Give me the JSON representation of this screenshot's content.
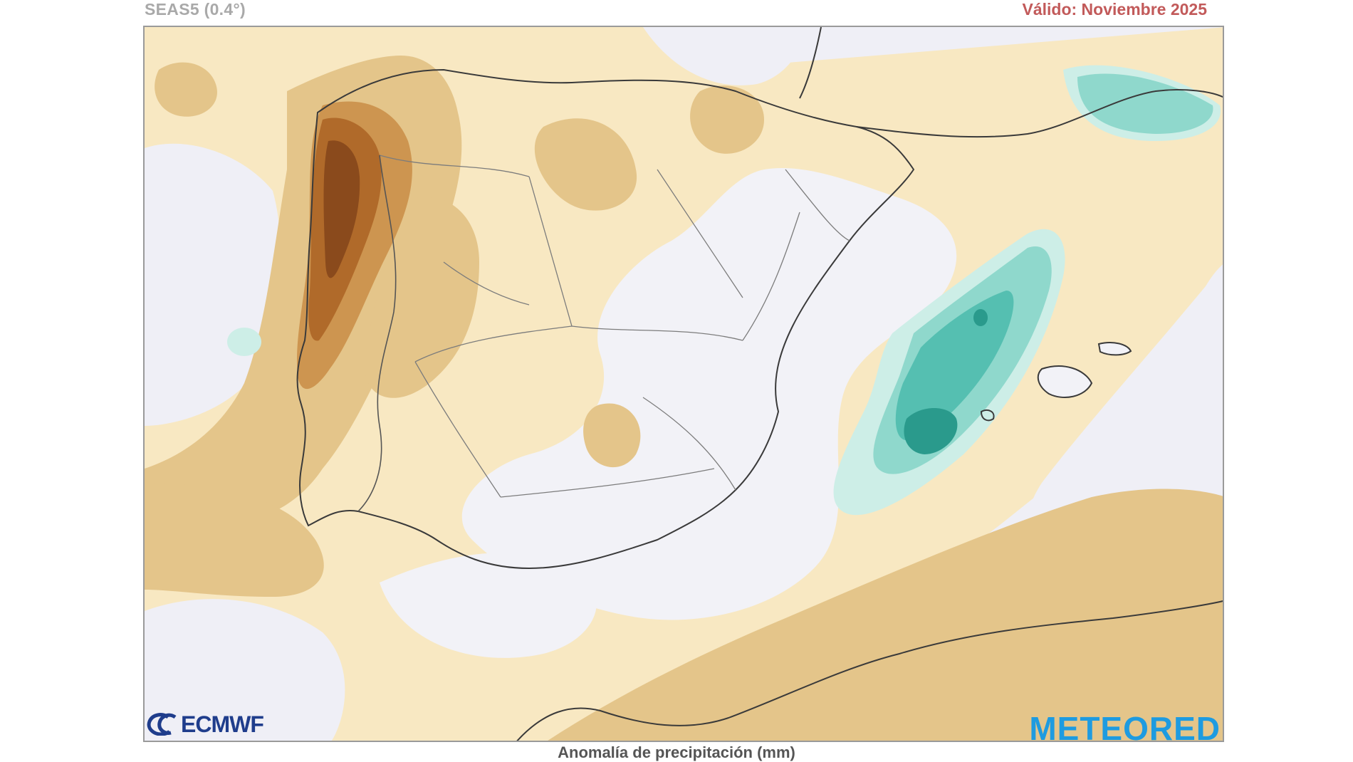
{
  "header": {
    "model": "SEAS5 (0.4°)",
    "valid": "Válido: Noviembre 2025"
  },
  "footer": {
    "caption": "Anomalía de precipitación (mm)",
    "logo_left": "ECMWF",
    "logo_right": "METEORED"
  },
  "colors": {
    "background": "#efeff6",
    "dry_light": "#f8e8c2",
    "dry_mid": "#e4c58a",
    "dry_strong": "#cd9550",
    "dry_very_strong": "#b06a2a",
    "dry_extreme": "#8a4a1c",
    "wet_light": "#cdeee7",
    "wet_mid": "#8fd8cc",
    "wet_strong": "#55bfb1",
    "wet_extreme": "#2a9a8c",
    "borders": "#6e6e6e"
  }
}
